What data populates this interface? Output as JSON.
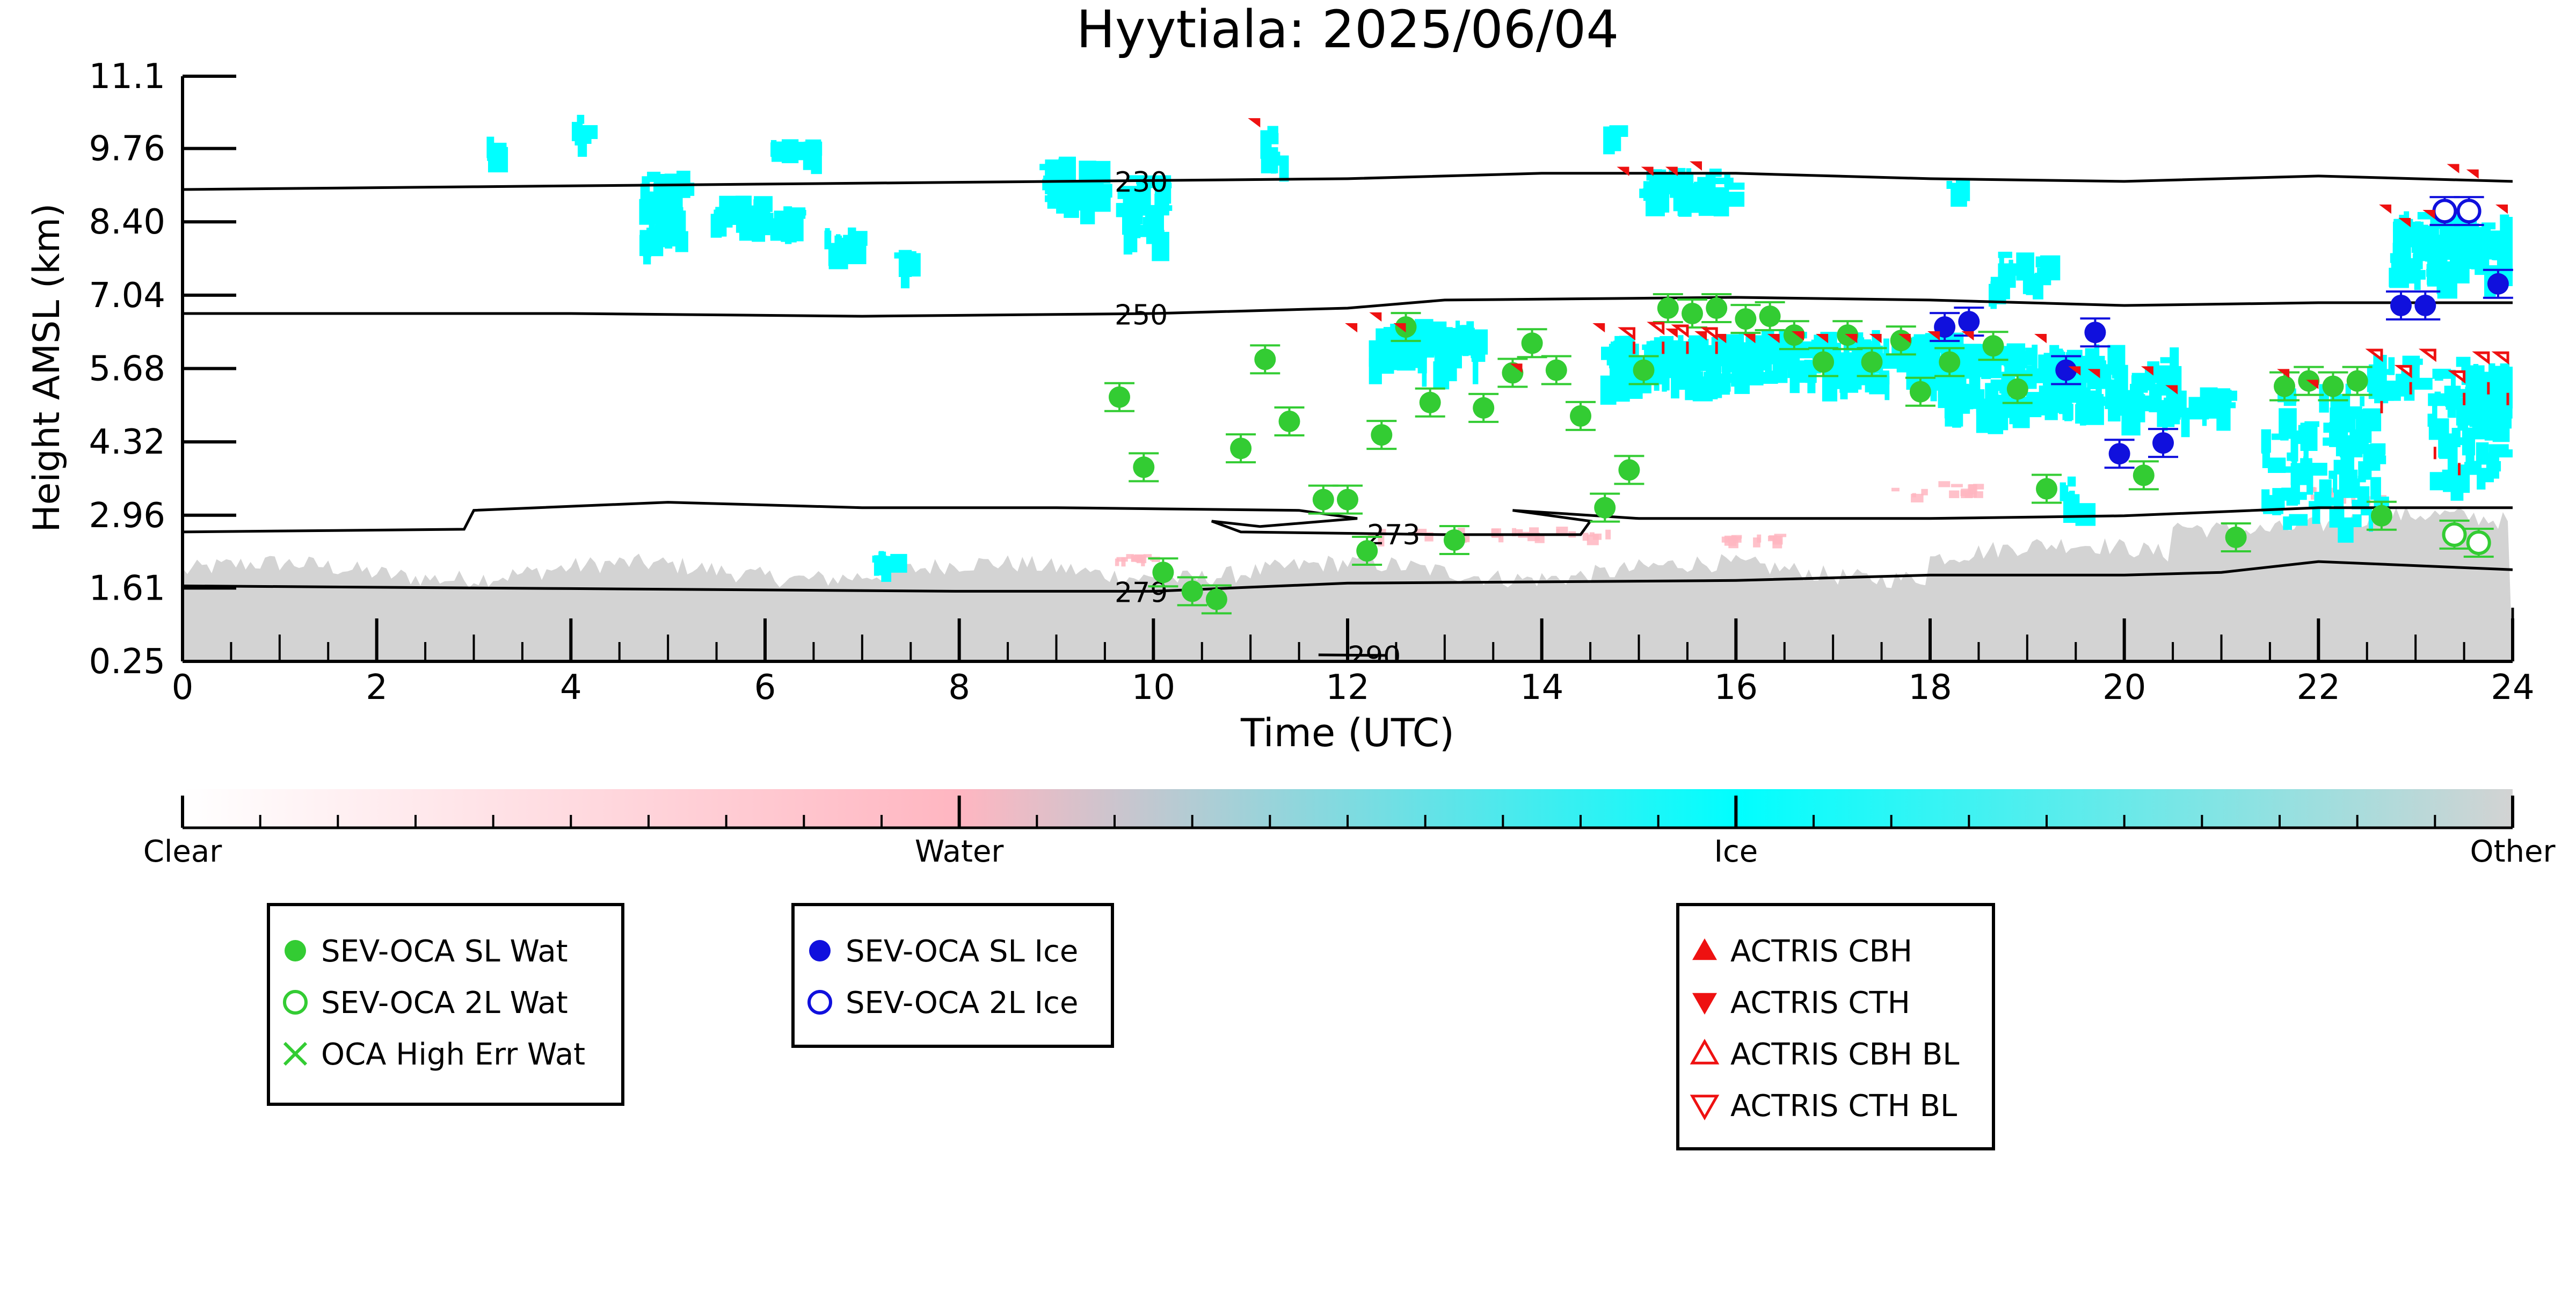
{
  "chart_data": {
    "type": "scatter",
    "title": "Hyytiala: 2025/06/04",
    "xlabel": "Time (UTC)",
    "ylabel": "Height AMSL (km)",
    "xlim": [
      0,
      24
    ],
    "ylim": [
      0.25,
      11.1
    ],
    "x_ticks": [
      0,
      2,
      4,
      6,
      8,
      10,
      12,
      14,
      16,
      18,
      20,
      22,
      24
    ],
    "y_ticks": [
      "0.25",
      "1.61",
      "2.96",
      "4.32",
      "5.68",
      "7.04",
      "8.40",
      "9.76",
      "11.1"
    ],
    "grid": false,
    "colorbar": {
      "labels": [
        "Clear",
        "Water",
        "Ice",
        "Other"
      ],
      "colors": [
        "#ffffff",
        "#ffb6c1",
        "#00ffff",
        "#d3d3d3"
      ]
    },
    "colors": {
      "water": "#33cc33",
      "ice": "#1010dd",
      "actris": "#ee1111",
      "clutter": "#d3d3d3",
      "cloud_ice": "#00ffff",
      "cloud_water": "#ffb6c1"
    },
    "contours": [
      {
        "label": "230",
        "label_x": 9.6,
        "points": [
          [
            0,
            9.0
          ],
          [
            3,
            9.05
          ],
          [
            6,
            9.1
          ],
          [
            9,
            9.15
          ],
          [
            12,
            9.2
          ],
          [
            14,
            9.3
          ],
          [
            16,
            9.3
          ],
          [
            18,
            9.2
          ],
          [
            20,
            9.15
          ],
          [
            22,
            9.25
          ],
          [
            24,
            9.15
          ]
        ]
      },
      {
        "label": "250",
        "label_x": 9.6,
        "points": [
          [
            0,
            6.7
          ],
          [
            4,
            6.7
          ],
          [
            7,
            6.65
          ],
          [
            10,
            6.7
          ],
          [
            12,
            6.8
          ],
          [
            13,
            6.95
          ],
          [
            16,
            7.0
          ],
          [
            18,
            6.95
          ],
          [
            20,
            6.85
          ],
          [
            22,
            6.9
          ],
          [
            24,
            6.9
          ]
        ]
      },
      {
        "label": "273",
        "label_x": 12.2,
        "points": [
          [
            0,
            2.65
          ],
          [
            2.9,
            2.7
          ],
          [
            3.0,
            3.05
          ],
          [
            5,
            3.2
          ],
          [
            7,
            3.1
          ],
          [
            9,
            3.1
          ],
          [
            11.5,
            3.05
          ],
          [
            12.1,
            2.9
          ],
          [
            11.1,
            2.75
          ],
          [
            10.6,
            2.85
          ],
          [
            10.9,
            2.65
          ],
          [
            13,
            2.6
          ],
          [
            14.4,
            2.6
          ],
          [
            14.5,
            2.85
          ],
          [
            13.7,
            3.05
          ],
          [
            15,
            2.9
          ],
          [
            18,
            2.9
          ],
          [
            20,
            2.95
          ],
          [
            22,
            3.1
          ],
          [
            24,
            3.1
          ]
        ]
      },
      {
        "label": "279",
        "label_x": 9.6,
        "points": [
          [
            0,
            1.65
          ],
          [
            4,
            1.6
          ],
          [
            8,
            1.55
          ],
          [
            10,
            1.55
          ],
          [
            12,
            1.7
          ],
          [
            16,
            1.75
          ],
          [
            18,
            1.85
          ],
          [
            20,
            1.85
          ],
          [
            21,
            1.9
          ],
          [
            22,
            2.1
          ],
          [
            24,
            1.95
          ]
        ]
      },
      {
        "label": "290",
        "label_x": 12.0,
        "points": [
          [
            11.7,
            0.37
          ],
          [
            12.4,
            0.36
          ]
        ]
      }
    ],
    "series": [
      {
        "name": "SEV-OCA SL Wat",
        "marker": "filled-circle",
        "color": "#33cc33",
        "points": [
          [
            9.65,
            5.15
          ],
          [
            9.9,
            3.85
          ],
          [
            10.1,
            1.9
          ],
          [
            10.4,
            1.55
          ],
          [
            10.65,
            1.4
          ],
          [
            10.9,
            4.2
          ],
          [
            11.15,
            5.85
          ],
          [
            11.4,
            4.7
          ],
          [
            11.75,
            3.25
          ],
          [
            12.0,
            3.25
          ],
          [
            12.2,
            2.3
          ],
          [
            12.35,
            4.45
          ],
          [
            12.6,
            6.45
          ],
          [
            12.85,
            5.05
          ],
          [
            13.1,
            2.5
          ],
          [
            13.4,
            4.95
          ],
          [
            13.7,
            5.6
          ],
          [
            13.9,
            6.15
          ],
          [
            14.15,
            5.65
          ],
          [
            14.4,
            4.8
          ],
          [
            14.65,
            3.1
          ],
          [
            14.9,
            3.8
          ],
          [
            15.05,
            5.65
          ],
          [
            15.3,
            6.8
          ],
          [
            15.55,
            6.7
          ],
          [
            15.8,
            6.8
          ],
          [
            16.1,
            6.6
          ],
          [
            16.35,
            6.65
          ],
          [
            16.6,
            6.3
          ],
          [
            16.9,
            5.8
          ],
          [
            17.15,
            6.3
          ],
          [
            17.4,
            5.8
          ],
          [
            17.7,
            6.2
          ],
          [
            17.9,
            5.25
          ],
          [
            18.2,
            5.8
          ],
          [
            18.65,
            6.1
          ],
          [
            18.9,
            5.3
          ],
          [
            19.2,
            3.45
          ],
          [
            20.2,
            3.7
          ],
          [
            21.15,
            2.55
          ],
          [
            21.65,
            5.35
          ],
          [
            21.9,
            5.45
          ],
          [
            22.15,
            5.35
          ],
          [
            22.4,
            5.45
          ],
          [
            22.65,
            2.95
          ]
        ]
      },
      {
        "name": "SEV-OCA 2L Wat",
        "marker": "open-circle",
        "color": "#33cc33",
        "points": [
          [
            23.4,
            2.6
          ],
          [
            23.65,
            2.45
          ]
        ]
      },
      {
        "name": "OCA High Err Wat",
        "marker": "cross",
        "color": "#33cc33",
        "points": []
      },
      {
        "name": "SEV-OCA SL Ice",
        "marker": "filled-circle",
        "color": "#1010dd",
        "points": [
          [
            18.15,
            6.45
          ],
          [
            18.4,
            6.55
          ],
          [
            19.4,
            5.65
          ],
          [
            19.7,
            6.35
          ],
          [
            19.95,
            4.1
          ],
          [
            20.4,
            4.3
          ],
          [
            22.85,
            6.85
          ],
          [
            23.1,
            6.85
          ],
          [
            23.85,
            7.25
          ]
        ]
      },
      {
        "name": "SEV-OCA 2L Ice",
        "marker": "open-circle",
        "color": "#1010dd",
        "points": [
          [
            23.3,
            8.6
          ],
          [
            23.55,
            8.6
          ]
        ]
      },
      {
        "name": "ACTRIS CBH",
        "marker": "triangle-up",
        "color": "#ee1111",
        "points": [
          [
            11.1,
            9.8
          ],
          [
            12.1,
            6.1
          ],
          [
            12.35,
            6.05
          ],
          [
            12.6,
            6.1
          ],
          [
            13.8,
            5.45
          ],
          [
            14.65,
            6.05
          ],
          [
            14.9,
            8.95
          ],
          [
            15.15,
            8.95
          ],
          [
            15.4,
            8.95
          ],
          [
            15.65,
            8.95
          ],
          [
            15.4,
            5.8
          ],
          [
            15.7,
            5.75
          ],
          [
            15.9,
            5.75
          ],
          [
            16.2,
            5.7
          ],
          [
            16.45,
            5.75
          ],
          [
            16.7,
            5.75
          ],
          [
            16.95,
            5.75
          ],
          [
            17.25,
            5.7
          ],
          [
            17.5,
            5.75
          ],
          [
            17.8,
            5.25
          ],
          [
            18.1,
            5.25
          ],
          [
            18.45,
            5.75
          ],
          [
            19.2,
            5.95
          ],
          [
            19.55,
            5.05
          ],
          [
            19.75,
            5.0
          ],
          [
            20.3,
            5.25
          ],
          [
            20.55,
            4.95
          ],
          [
            21.7,
            3.6
          ],
          [
            22.0,
            5.0
          ],
          [
            22.75,
            8.0
          ],
          [
            22.95,
            8.2
          ],
          [
            23.2,
            8.2
          ],
          [
            23.5,
            8.2
          ],
          [
            23.7,
            7.7
          ],
          [
            23.95,
            7.95
          ]
        ]
      },
      {
        "name": "ACTRIS CTH",
        "marker": "triangle-down",
        "color": "#ee1111",
        "points": [
          [
            11.1,
            10.15
          ],
          [
            12.1,
            6.35
          ],
          [
            12.35,
            6.55
          ],
          [
            12.6,
            6.35
          ],
          [
            13.8,
            5.6
          ],
          [
            14.65,
            6.35
          ],
          [
            14.9,
            9.25
          ],
          [
            15.15,
            9.25
          ],
          [
            15.4,
            9.25
          ],
          [
            15.65,
            9.35
          ],
          [
            15.4,
            6.25
          ],
          [
            15.7,
            6.2
          ],
          [
            15.9,
            6.15
          ],
          [
            16.2,
            6.15
          ],
          [
            16.45,
            6.15
          ],
          [
            16.7,
            6.2
          ],
          [
            16.95,
            6.15
          ],
          [
            17.25,
            6.15
          ],
          [
            17.5,
            6.15
          ],
          [
            17.8,
            6.15
          ],
          [
            18.1,
            6.2
          ],
          [
            18.45,
            6.2
          ],
          [
            19.2,
            6.15
          ],
          [
            19.55,
            5.55
          ],
          [
            19.75,
            5.5
          ],
          [
            20.3,
            5.55
          ],
          [
            20.55,
            5.2
          ],
          [
            21.7,
            5.5
          ],
          [
            22.0,
            5.3
          ],
          [
            22.75,
            8.55
          ],
          [
            22.95,
            8.3
          ],
          [
            23.2,
            8.45
          ],
          [
            23.45,
            9.3
          ],
          [
            23.65,
            9.2
          ],
          [
            23.95,
            8.55
          ]
        ]
      },
      {
        "name": "ACTRIS CBH BL",
        "marker": "open-triangle-up",
        "color": "#ee1111",
        "points": [
          [
            14.95,
            5.95
          ],
          [
            15.25,
            5.95
          ],
          [
            15.5,
            5.95
          ],
          [
            15.8,
            5.95
          ],
          [
            22.65,
            4.85
          ],
          [
            22.95,
            5.2
          ],
          [
            23.2,
            4.0
          ],
          [
            23.45,
            3.7
          ],
          [
            23.5,
            5.0
          ],
          [
            23.75,
            5.2
          ],
          [
            23.95,
            5.0
          ]
        ]
      },
      {
        "name": "ACTRIS CTH BL",
        "marker": "open-triangle-down",
        "color": "#ee1111",
        "points": [
          [
            14.95,
            6.25
          ],
          [
            15.25,
            6.35
          ],
          [
            15.5,
            6.3
          ],
          [
            15.8,
            6.25
          ],
          [
            22.65,
            5.85
          ],
          [
            22.95,
            5.55
          ],
          [
            23.2,
            5.85
          ],
          [
            23.5,
            5.45
          ],
          [
            23.75,
            5.8
          ],
          [
            23.95,
            5.8
          ]
        ]
      }
    ],
    "legends": [
      [
        "SEV-OCA SL Wat",
        "SEV-OCA 2L Wat",
        "OCA High Err Wat"
      ],
      [
        "SEV-OCA SL Ice",
        "SEV-OCA 2L Ice"
      ],
      [
        "ACTRIS CBH",
        "ACTRIS CTH",
        "ACTRIS CBH BL",
        "ACTRIS CTH BL"
      ]
    ]
  }
}
